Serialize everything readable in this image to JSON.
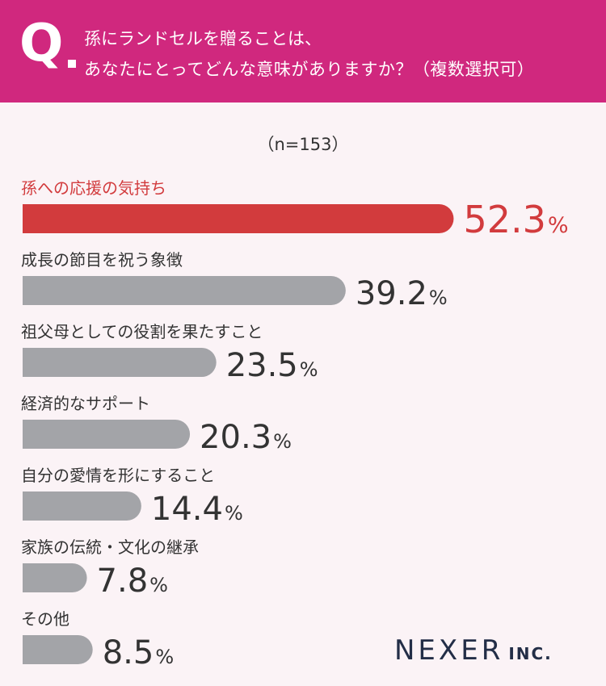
{
  "question": {
    "mark": "Q",
    "line1": "孫にランドセルを贈ることは、",
    "line2": "あなたにとってどんな意味がありますか？（複数選択可）"
  },
  "sample": "（n=153）",
  "logo": {
    "main": "NEXER",
    "sub": "INC."
  },
  "colors": {
    "header": "#d0287e",
    "highlight": "#d23b3d",
    "bar": "#a3a4a8",
    "text": "#333333",
    "logo": "#232e47"
  },
  "chart_data": {
    "type": "bar",
    "orientation": "horizontal",
    "unit": "%",
    "categories": [
      "孫への応援の気持ち",
      "成長の節目を祝う象徴",
      "祖父母としての役割を果たすこと",
      "経済的なサポート",
      "自分の愛情を形にすること",
      "家族の伝統・文化の継承",
      "その他"
    ],
    "values": [
      52.3,
      39.2,
      23.5,
      20.3,
      14.4,
      7.8,
      8.5
    ],
    "highlight_index": 0
  }
}
